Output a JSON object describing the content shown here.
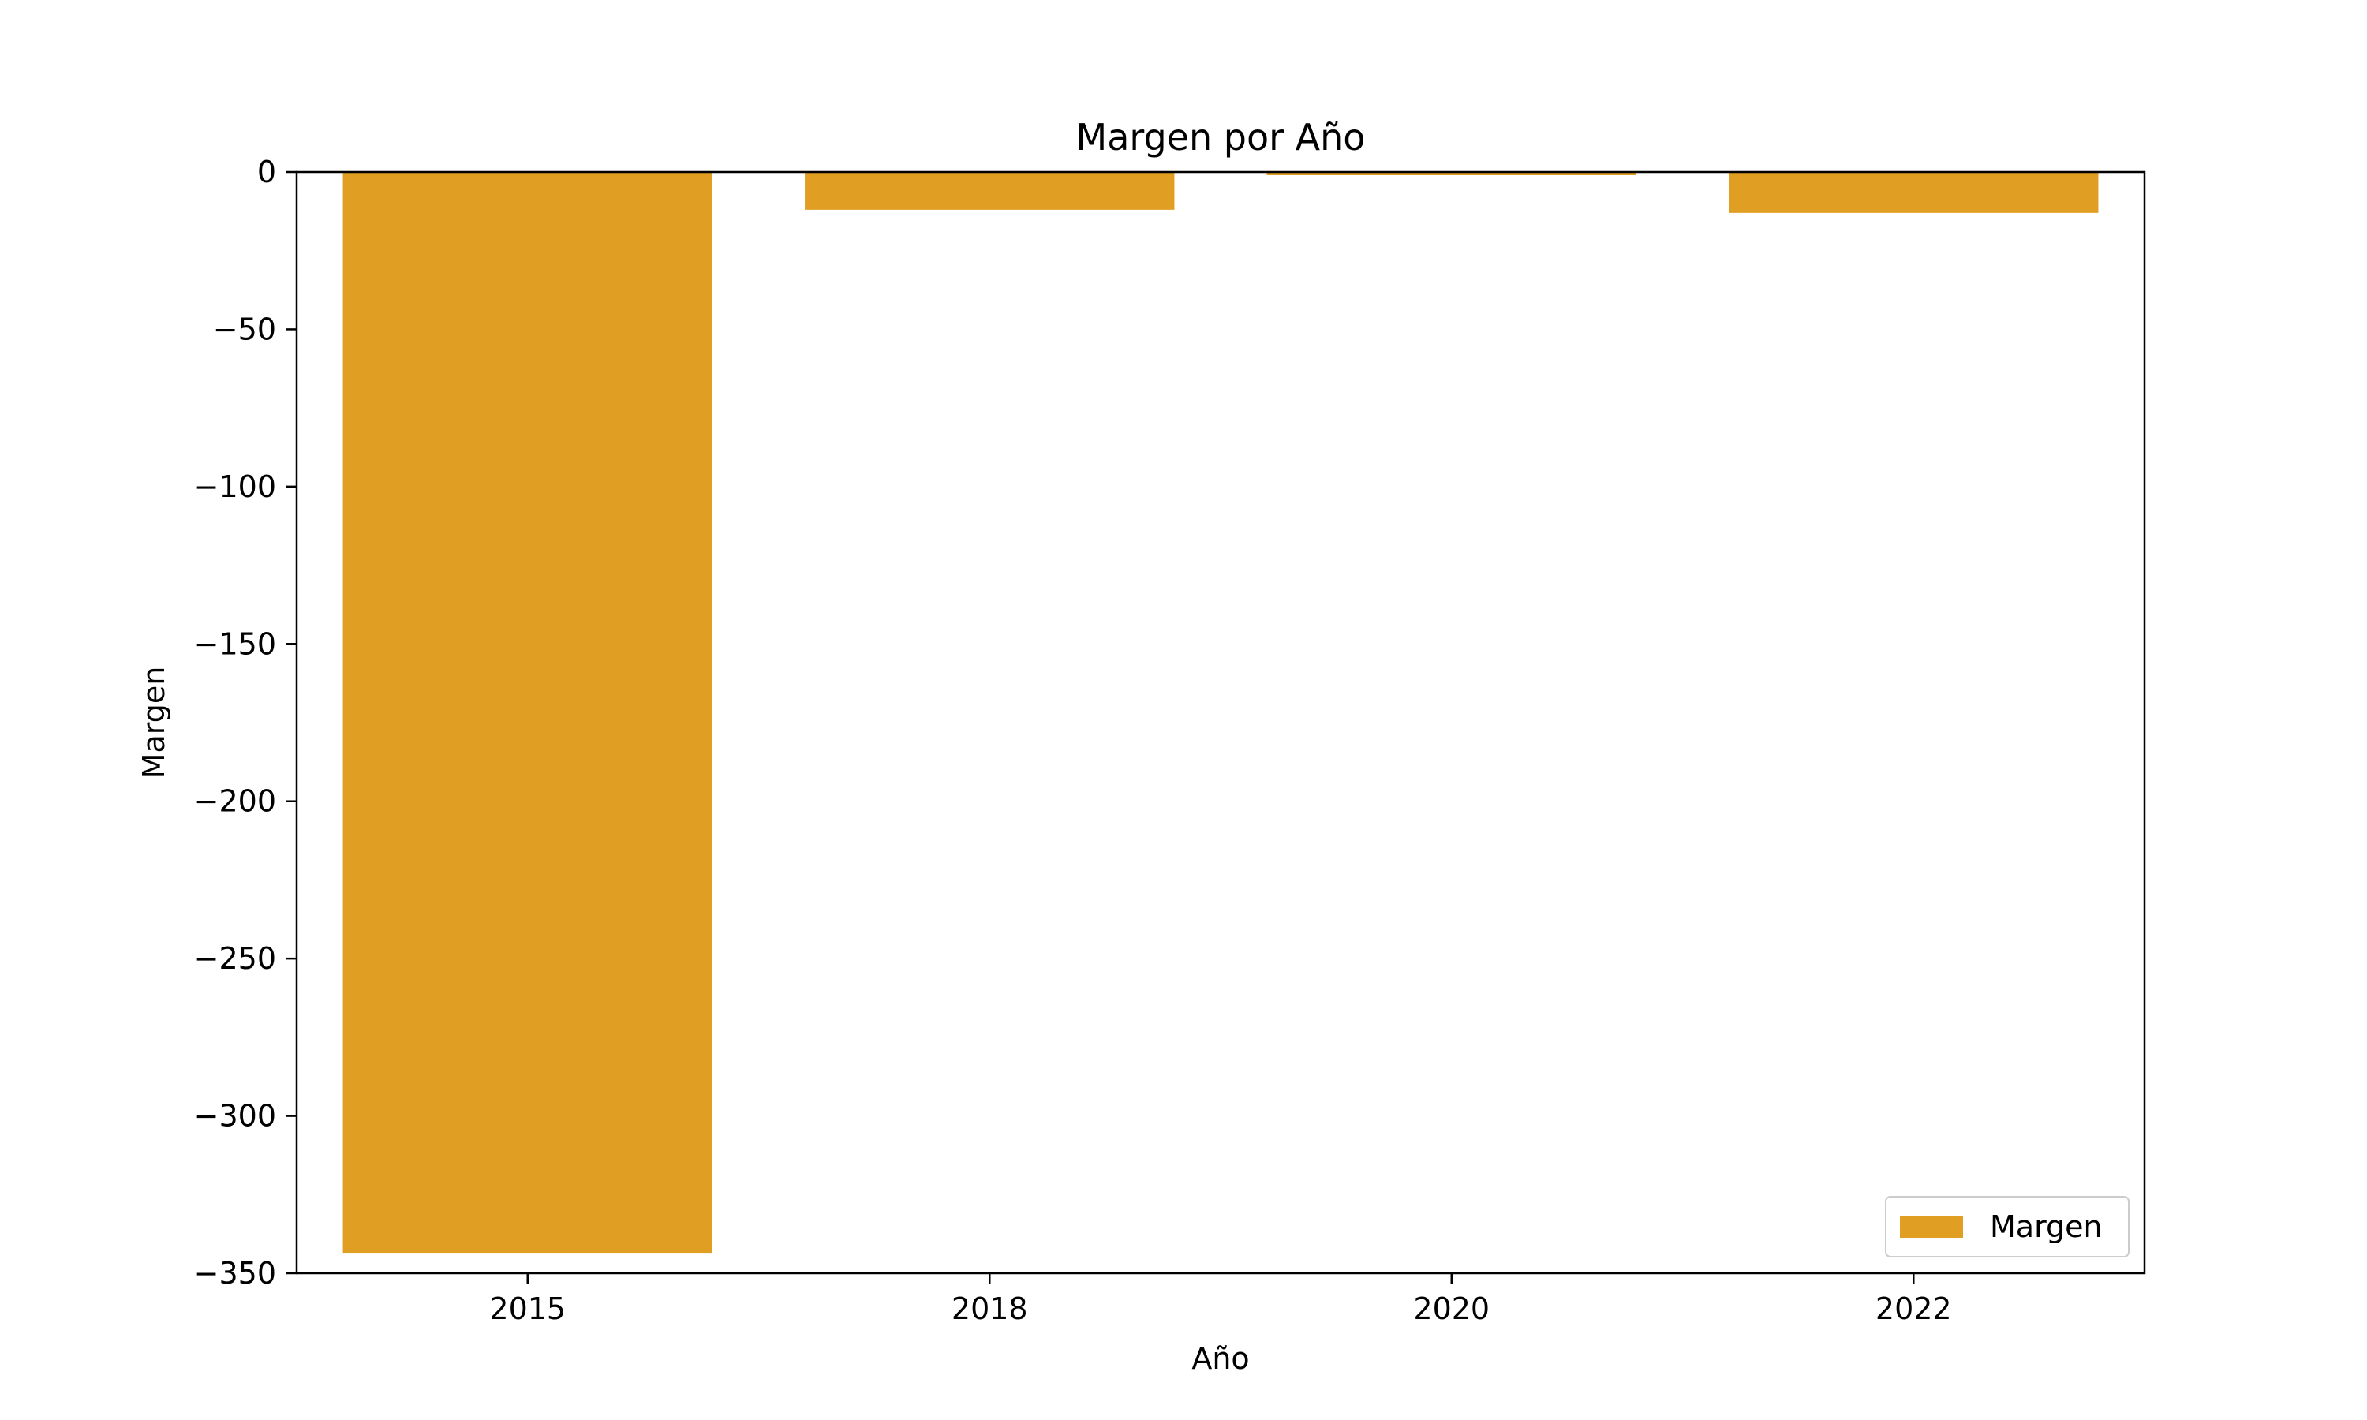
{
  "chart_data": {
    "type": "bar",
    "title": "Margen por Año",
    "xlabel": "Año",
    "ylabel": "Margen",
    "categories": [
      "2015",
      "2018",
      "2020",
      "2022"
    ],
    "series": [
      {
        "name": "Margen",
        "values": [
          -343.5,
          -12,
          -1,
          -13
        ]
      }
    ],
    "ylim": [
      -350,
      0
    ],
    "yticks": [
      0,
      -50,
      -100,
      -150,
      -200,
      -250,
      -300,
      -350
    ],
    "ytick_labels": [
      "0",
      "−50",
      "−100",
      "−150",
      "−200",
      "−250",
      "−300",
      "−350"
    ],
    "grid": false,
    "legend_position": "lower-right",
    "colors": {
      "bar": "#e09e22",
      "axis": "#000000",
      "legend_border": "#cccccc",
      "background": "#ffffff"
    }
  }
}
